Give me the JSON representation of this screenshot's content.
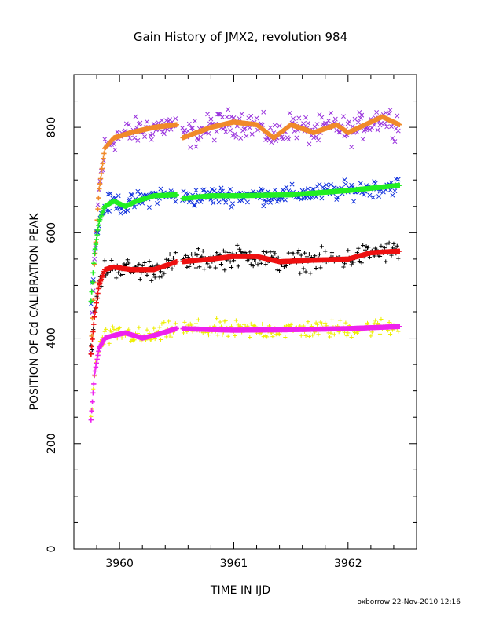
{
  "chart_data": {
    "type": "scatter",
    "title": "Gain History of JMX2, revolution 984",
    "xlabel": "TIME IN IJD",
    "ylabel": "POSITION OF Cd CALIBRATION PEAK",
    "xlim": [
      3959.6,
      3962.6
    ],
    "ylim": [
      0,
      900
    ],
    "x_ticks": [
      3960,
      3961,
      3962
    ],
    "y_ticks": [
      0,
      200,
      400,
      600,
      800
    ],
    "gap": [
      3960.5,
      3960.55
    ],
    "x_start": 3959.75,
    "x_end": 3962.45,
    "series": [
      {
        "marker": "x",
        "color": "#9933dd",
        "scatter": 18,
        "points": [
          [
            3959.75,
            370
          ],
          [
            3959.78,
            540
          ],
          [
            3959.82,
            680
          ],
          [
            3959.87,
            760
          ],
          [
            3959.95,
            780
          ],
          [
            3960.1,
            790
          ],
          [
            3960.3,
            800
          ],
          [
            3960.5,
            805
          ],
          [
            3960.55,
            780
          ],
          [
            3960.8,
            800
          ],
          [
            3961.0,
            810
          ],
          [
            3961.2,
            805
          ],
          [
            3961.35,
            780
          ],
          [
            3961.5,
            805
          ],
          [
            3961.7,
            790
          ],
          [
            3961.9,
            805
          ],
          [
            3962.0,
            790
          ],
          [
            3962.2,
            810
          ],
          [
            3962.3,
            820
          ],
          [
            3962.45,
            805
          ]
        ]
      },
      {
        "marker": "+",
        "color": "#f08a2a",
        "scatter": 0,
        "points": [
          [
            3959.75,
            370
          ],
          [
            3959.78,
            540
          ],
          [
            3959.82,
            680
          ],
          [
            3959.87,
            760
          ],
          [
            3959.95,
            780
          ],
          [
            3960.1,
            790
          ],
          [
            3960.3,
            800
          ],
          [
            3960.5,
            805
          ],
          [
            3960.55,
            780
          ],
          [
            3960.8,
            800
          ],
          [
            3961.0,
            810
          ],
          [
            3961.2,
            805
          ],
          [
            3961.35,
            780
          ],
          [
            3961.5,
            805
          ],
          [
            3961.7,
            790
          ],
          [
            3961.9,
            805
          ],
          [
            3962.0,
            790
          ],
          [
            3962.2,
            810
          ],
          [
            3962.3,
            820
          ],
          [
            3962.45,
            805
          ]
        ]
      },
      {
        "marker": "x",
        "color": "#1030dd",
        "scatter": 12,
        "points": [
          [
            3959.75,
            470
          ],
          [
            3959.78,
            560
          ],
          [
            3959.82,
            620
          ],
          [
            3959.87,
            650
          ],
          [
            3959.95,
            660
          ],
          [
            3960.05,
            650
          ],
          [
            3960.15,
            660
          ],
          [
            3960.3,
            670
          ],
          [
            3960.5,
            672
          ],
          [
            3960.55,
            665
          ],
          [
            3960.8,
            670
          ],
          [
            3961.0,
            670
          ],
          [
            3961.5,
            672
          ],
          [
            3962.0,
            680
          ],
          [
            3962.45,
            690
          ]
        ]
      },
      {
        "marker": "+",
        "color": "#22ee22",
        "scatter": 0,
        "points": [
          [
            3959.75,
            470
          ],
          [
            3959.78,
            560
          ],
          [
            3959.82,
            620
          ],
          [
            3959.87,
            650
          ],
          [
            3959.95,
            660
          ],
          [
            3960.05,
            650
          ],
          [
            3960.15,
            660
          ],
          [
            3960.3,
            670
          ],
          [
            3960.5,
            672
          ],
          [
            3960.55,
            665
          ],
          [
            3960.8,
            670
          ],
          [
            3961.0,
            670
          ],
          [
            3961.5,
            672
          ],
          [
            3962.0,
            680
          ],
          [
            3962.45,
            690
          ]
        ]
      },
      {
        "marker": "+",
        "color": "#000000",
        "scatter": 14,
        "points": [
          [
            3959.75,
            370
          ],
          [
            3959.78,
            440
          ],
          [
            3959.82,
            500
          ],
          [
            3959.87,
            530
          ],
          [
            3959.95,
            535
          ],
          [
            3960.1,
            530
          ],
          [
            3960.3,
            530
          ],
          [
            3960.5,
            545
          ],
          [
            3960.55,
            545
          ],
          [
            3960.8,
            550
          ],
          [
            3961.0,
            555
          ],
          [
            3961.2,
            555
          ],
          [
            3961.4,
            545
          ],
          [
            3961.7,
            548
          ],
          [
            3962.0,
            550
          ],
          [
            3962.2,
            562
          ],
          [
            3962.45,
            565
          ]
        ]
      },
      {
        "marker": "+",
        "color": "#ee1111",
        "scatter": 0,
        "points": [
          [
            3959.75,
            370
          ],
          [
            3959.78,
            440
          ],
          [
            3959.82,
            500
          ],
          [
            3959.87,
            530
          ],
          [
            3959.95,
            535
          ],
          [
            3960.1,
            530
          ],
          [
            3960.3,
            530
          ],
          [
            3960.5,
            545
          ],
          [
            3960.55,
            545
          ],
          [
            3960.8,
            550
          ],
          [
            3961.0,
            555
          ],
          [
            3961.2,
            555
          ],
          [
            3961.4,
            545
          ],
          [
            3961.7,
            548
          ],
          [
            3962.0,
            550
          ],
          [
            3962.2,
            562
          ],
          [
            3962.45,
            565
          ]
        ]
      },
      {
        "marker": "+",
        "color": "#eeee00",
        "scatter": 12,
        "points": [
          [
            3959.75,
            245
          ],
          [
            3959.78,
            330
          ],
          [
            3959.82,
            380
          ],
          [
            3959.87,
            400
          ],
          [
            3959.95,
            405
          ],
          [
            3960.05,
            410
          ],
          [
            3960.2,
            400
          ],
          [
            3960.3,
            405
          ],
          [
            3960.5,
            418
          ],
          [
            3960.55,
            418
          ],
          [
            3961.0,
            415
          ],
          [
            3961.5,
            416
          ],
          [
            3962.0,
            418
          ],
          [
            3962.45,
            422
          ]
        ]
      },
      {
        "marker": "+",
        "color": "#ee22ee",
        "scatter": 0,
        "points": [
          [
            3959.75,
            245
          ],
          [
            3959.78,
            330
          ],
          [
            3959.82,
            380
          ],
          [
            3959.87,
            400
          ],
          [
            3959.95,
            405
          ],
          [
            3960.05,
            410
          ],
          [
            3960.2,
            400
          ],
          [
            3960.3,
            405
          ],
          [
            3960.5,
            418
          ],
          [
            3960.55,
            418
          ],
          [
            3961.0,
            415
          ],
          [
            3961.5,
            416
          ],
          [
            3962.0,
            418
          ],
          [
            3962.45,
            422
          ]
        ]
      }
    ],
    "footer": "oxborrow 22-Nov-2010 12:16"
  }
}
